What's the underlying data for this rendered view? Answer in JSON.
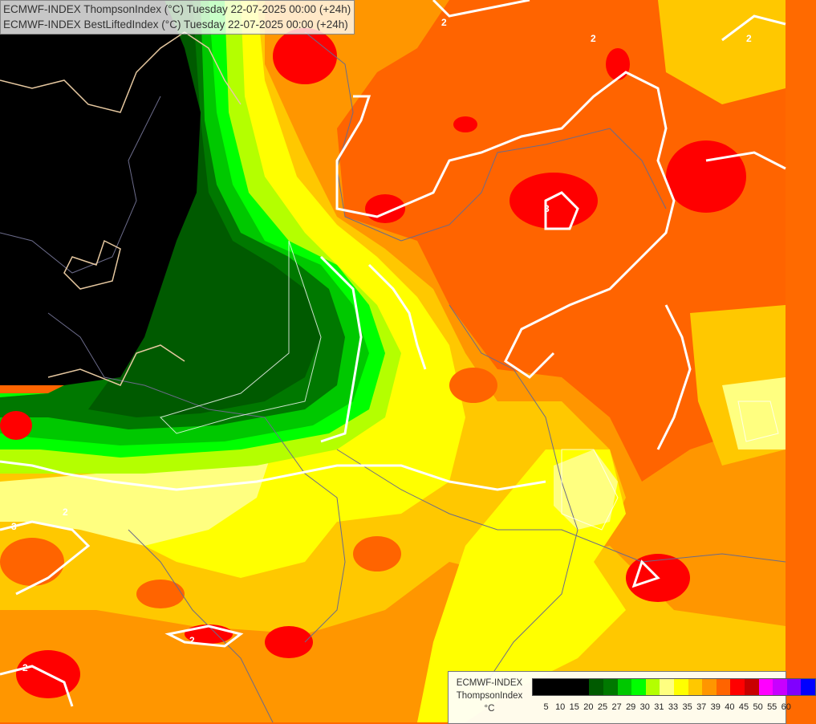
{
  "header": {
    "line1": "ECMWF-INDEX ThompsonIndex (°C) Tuesday 22-07-2025 00:00 (+24h)",
    "line2": "ECMWF-INDEX BestLiftedIndex (°C) Tuesday 22-07-2025 00:00 (+24h)"
  },
  "legend": {
    "model": "ECMWF-INDEX",
    "parameter": "ThompsonIndex",
    "unit": "°C",
    "ticks": [
      "5",
      "10",
      "15",
      "20",
      "25",
      "27",
      "29",
      "30",
      "31",
      "33",
      "35",
      "37",
      "39",
      "40",
      "45",
      "50",
      "55",
      "60"
    ],
    "colors": [
      "#000000",
      "#000000",
      "#000000",
      "#000000",
      "#005a00",
      "#007800",
      "#00c800",
      "#00ff00",
      "#b4ff00",
      "#ffff80",
      "#ffff00",
      "#ffc800",
      "#ff9600",
      "#ff6400",
      "#ff0000",
      "#c80000",
      "#ff00ff",
      "#c800ff",
      "#8000ff",
      "#0000ff"
    ]
  },
  "contour_labels": [
    "2",
    "2",
    "2",
    "3",
    "3",
    "2",
    "2",
    "2"
  ],
  "palette": {
    "black": "#000000",
    "dark_green": "#005a00",
    "green": "#00c800",
    "light_green": "#b4ff00",
    "pale_yellow": "#ffff80",
    "yellow": "#ffff00",
    "light_orange": "#ffc800",
    "orange": "#ff9600",
    "dark_orange": "#ff6400",
    "red": "#ff0000"
  }
}
